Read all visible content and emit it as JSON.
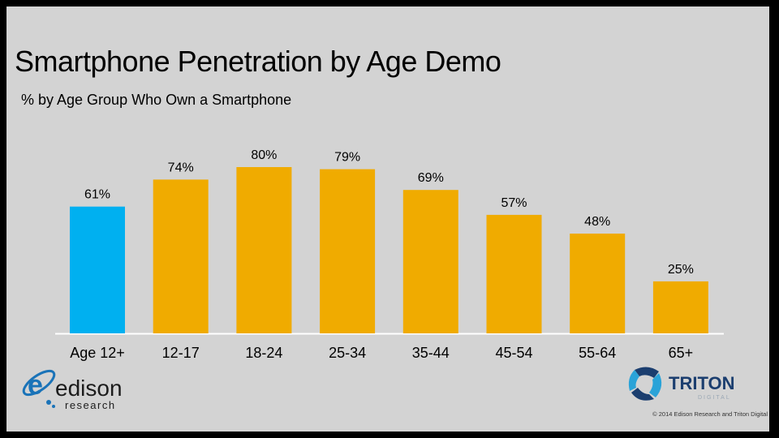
{
  "slide": {
    "title": "Smartphone Penetration by Age Demo",
    "subtitle": "% by Age Group Who Own a Smartphone",
    "copyright": "© 2014 Edison Research and Triton Digital"
  },
  "logos": {
    "edison": {
      "name": "edison",
      "sub": "research"
    },
    "triton": {
      "name": "TRITON",
      "sub": "DIGITAL"
    }
  },
  "colors": {
    "highlight": "#00b0f0",
    "bar": "#f0ab00",
    "edison_blue": "#1a73b8",
    "triton_navy": "#1b3e6f"
  },
  "chart_data": {
    "type": "bar",
    "title": "Smartphone Penetration by Age Demo",
    "subtitle": "% by Age Group Who Own a Smartphone",
    "xlabel": "",
    "ylabel": "",
    "categories": [
      "Age 12+",
      "12-17",
      "18-24",
      "25-34",
      "35-44",
      "45-54",
      "55-64",
      "65+"
    ],
    "values": [
      61,
      74,
      80,
      79,
      69,
      57,
      48,
      25
    ],
    "labels": [
      "61%",
      "74%",
      "80%",
      "79%",
      "69%",
      "57%",
      "48%",
      "25%"
    ],
    "highlight_index": 0,
    "ylim": [
      0,
      80
    ],
    "grid": false,
    "legend": "none"
  }
}
